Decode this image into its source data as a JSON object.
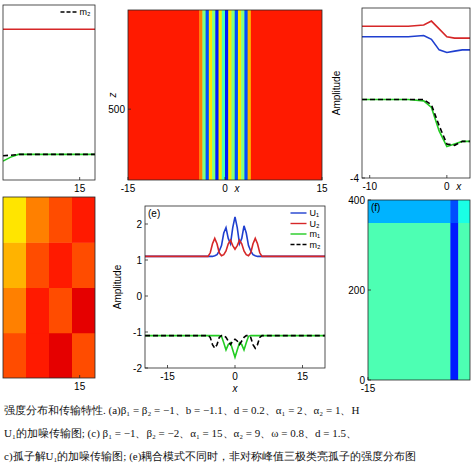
{
  "chart_data": [
    {
      "type": "line",
      "xlim": [
        5,
        17
      ],
      "xticks": [
        15
      ],
      "ylim": [
        -4,
        2.5
      ],
      "yticks": [],
      "tick_labels": "x",
      "legend": "upper right",
      "x": [
        5,
        6,
        7,
        9,
        12,
        15,
        17
      ],
      "series": [
        {
          "color": "#d62728",
          "line_style": "solid",
          "values": [
            1.6,
            1.6,
            1.6,
            1.6,
            1.6,
            1.6,
            1.6
          ]
        },
        {
          "color": "#22cc22",
          "line_style": "solid",
          "values": [
            -3.3,
            -3.15,
            -3.05,
            -3.05,
            -3.05,
            -3.05,
            -3.05
          ]
        },
        {
          "name": "m₂",
          "color": "#000000",
          "line_style": "dashed",
          "values": [
            -3.1,
            -3.08,
            -3.05,
            -3.05,
            -3.05,
            -3.05,
            -3.05
          ]
        }
      ]
    },
    {
      "type": "heatmap",
      "x_label": "x",
      "y_label": "z",
      "xlim": [
        -15,
        15
      ],
      "xticks": [
        -15,
        0,
        15
      ],
      "ylim": [
        0,
        1200
      ],
      "yticks": [
        500
      ],
      "color_range": [
        0,
        1
      ],
      "x_edges": [
        -15,
        -4,
        -3.5,
        -3,
        -2.5,
        -2,
        -1.5,
        -1,
        -0.5,
        0,
        0.5,
        1,
        1.5,
        2,
        2.5,
        3,
        3.5,
        4,
        15
      ],
      "z_edges": [
        0,
        1200
      ],
      "cells": [
        [
          0.85,
          0.75,
          0.5,
          0.2,
          0.65,
          0.5,
          0.15,
          0.65,
          0.45,
          0.15,
          0.65,
          0.5,
          0.2,
          0.65,
          0.5,
          0.2,
          0.7,
          0.85
        ]
      ]
    },
    {
      "type": "line",
      "x_label": "x",
      "y_label": "Amplitude",
      "xlim": [
        -11,
        3
      ],
      "xticks": [
        -10,
        0
      ],
      "ylim": [
        -4,
        2.5
      ],
      "yticks": [
        -4
      ],
      "x": [
        -11,
        -8,
        -5,
        -3,
        -2,
        -1,
        0,
        1,
        2,
        3
      ],
      "series": [
        {
          "color": "#d62728",
          "line_style": "solid",
          "values": [
            1.8,
            1.8,
            1.8,
            1.85,
            2.0,
            1.7,
            1.4,
            1.35,
            1.35,
            1.35
          ]
        },
        {
          "color": "#1f3fcf",
          "line_style": "solid",
          "values": [
            1.4,
            1.4,
            1.4,
            1.45,
            1.3,
            0.9,
            0.8,
            0.85,
            0.9,
            0.9
          ]
        },
        {
          "color": "#22cc22",
          "line_style": "solid",
          "values": [
            -1.0,
            -1.0,
            -1.0,
            -1.05,
            -1.3,
            -2.2,
            -2.8,
            -2.7,
            -2.6,
            -2.6
          ]
        },
        {
          "color": "#000000",
          "line_style": "dashed",
          "values": [
            -1.0,
            -1.0,
            -1.0,
            -1.0,
            -1.2,
            -2.0,
            -2.7,
            -2.75,
            -2.6,
            -2.6
          ]
        }
      ]
    },
    {
      "type": "heatmap",
      "xlim": [
        5,
        17
      ],
      "xticks": [
        15
      ],
      "ylim": [
        0,
        400
      ],
      "yticks": [],
      "tick_labels": "x",
      "color_range": [
        0,
        1
      ],
      "x_edges": [
        5,
        8,
        11,
        14,
        17
      ],
      "z_edges": [
        0,
        100,
        200,
        300,
        400
      ],
      "cells": [
        [
          0.8,
          0.85,
          0.9,
          0.8
        ],
        [
          0.75,
          0.85,
          0.8,
          0.9
        ],
        [
          0.7,
          0.8,
          0.85,
          0.8
        ],
        [
          0.65,
          0.75,
          0.8,
          0.85
        ]
      ]
    },
    {
      "type": "line",
      "title": "(e)",
      "x_label": "x",
      "y_label": "Amplitude",
      "xlim": [
        -20,
        20
      ],
      "xticks": [
        -15,
        0,
        15
      ],
      "ylim": [
        -2,
        2.5
      ],
      "yticks": [
        -2,
        -1,
        0,
        1,
        2
      ],
      "legend": "upper right",
      "x": [
        -20,
        -10,
        -7,
        -6,
        -5.5,
        -5,
        -4.5,
        -4,
        -3.5,
        -3,
        -2.5,
        -2,
        -1.5,
        -1,
        -0.5,
        0,
        0.5,
        1,
        1.5,
        2,
        2.5,
        3,
        3.5,
        4,
        4.5,
        5,
        5.5,
        6,
        7,
        10,
        20
      ],
      "series": [
        {
          "name": "U₁",
          "color": "#1f3fcf",
          "line_style": "solid",
          "values": [
            1.1,
            1.1,
            1.1,
            1.1,
            1.1,
            1.1,
            1.12,
            1.15,
            1.25,
            1.4,
            1.75,
            1.9,
            1.6,
            1.45,
            1.9,
            2.2,
            1.9,
            1.45,
            1.6,
            1.95,
            1.75,
            1.4,
            1.25,
            1.15,
            1.12,
            1.1,
            1.1,
            1.1,
            1.1,
            1.1,
            1.1
          ]
        },
        {
          "name": "U₂",
          "color": "#d62728",
          "line_style": "solid",
          "values": [
            1.1,
            1.1,
            1.1,
            1.1,
            1.2,
            1.45,
            1.6,
            1.45,
            1.2,
            1.12,
            1.15,
            1.25,
            1.45,
            1.55,
            1.4,
            1.3,
            1.4,
            1.55,
            1.45,
            1.25,
            1.15,
            1.12,
            1.2,
            1.45,
            1.6,
            1.45,
            1.2,
            1.1,
            1.1,
            1.1,
            1.1
          ]
        },
        {
          "name": "m₁",
          "color": "#22cc22",
          "line_style": "solid",
          "values": [
            -1.1,
            -1.1,
            -1.1,
            -1.1,
            -1.1,
            -1.1,
            -1.1,
            -1.1,
            -1.1,
            -1.12,
            -1.3,
            -1.5,
            -1.35,
            -1.3,
            -1.5,
            -1.7,
            -1.5,
            -1.3,
            -1.35,
            -1.5,
            -1.3,
            -1.12,
            -1.1,
            -1.1,
            -1.1,
            -1.1,
            -1.1,
            -1.1,
            -1.1,
            -1.1,
            -1.1
          ]
        },
        {
          "name": "m₂",
          "color": "#000000",
          "line_style": "dashed",
          "values": [
            -1.1,
            -1.1,
            -1.1,
            -1.1,
            -1.15,
            -1.35,
            -1.45,
            -1.35,
            -1.15,
            -1.1,
            -1.1,
            -1.15,
            -1.25,
            -1.35,
            -1.25,
            -1.2,
            -1.25,
            -1.35,
            -1.25,
            -1.15,
            -1.1,
            -1.1,
            -1.15,
            -1.35,
            -1.45,
            -1.35,
            -1.15,
            -1.1,
            -1.1,
            -1.1,
            -1.1
          ]
        }
      ]
    },
    {
      "type": "heatmap",
      "title": "(f)",
      "xlim": [
        -15,
        -2
      ],
      "xticks": [
        -15
      ],
      "ylim": [
        0,
        400
      ],
      "yticks": [
        0,
        200,
        400
      ],
      "color_range": [
        0,
        1
      ],
      "x_edges": [
        -15,
        -4.5,
        -3.5,
        -2
      ],
      "z_edges": [
        0,
        350,
        400
      ],
      "cells": [
        [
          0.45,
          0.15,
          0.45
        ],
        [
          0.3,
          0.2,
          0.4
        ]
      ]
    }
  ],
  "caption": {
    "lines": [
      "强度分布和传输特性. (a)β₁ = β₂ = −1、b = −1.1、d = 0.2、α₁ = 2、α₂ = 1、H",
      "U₁的加噪传输图; (c) β₁ = −1、β₂ = −2、α₁ = 15、α₂ = 9、ω = 0.8、d = 1.5、",
      "c)孤子解U₁的加噪传输图; (e)耦合模式不同时，非对称峰值三极类亮孤子的强度分布图"
    ]
  }
}
